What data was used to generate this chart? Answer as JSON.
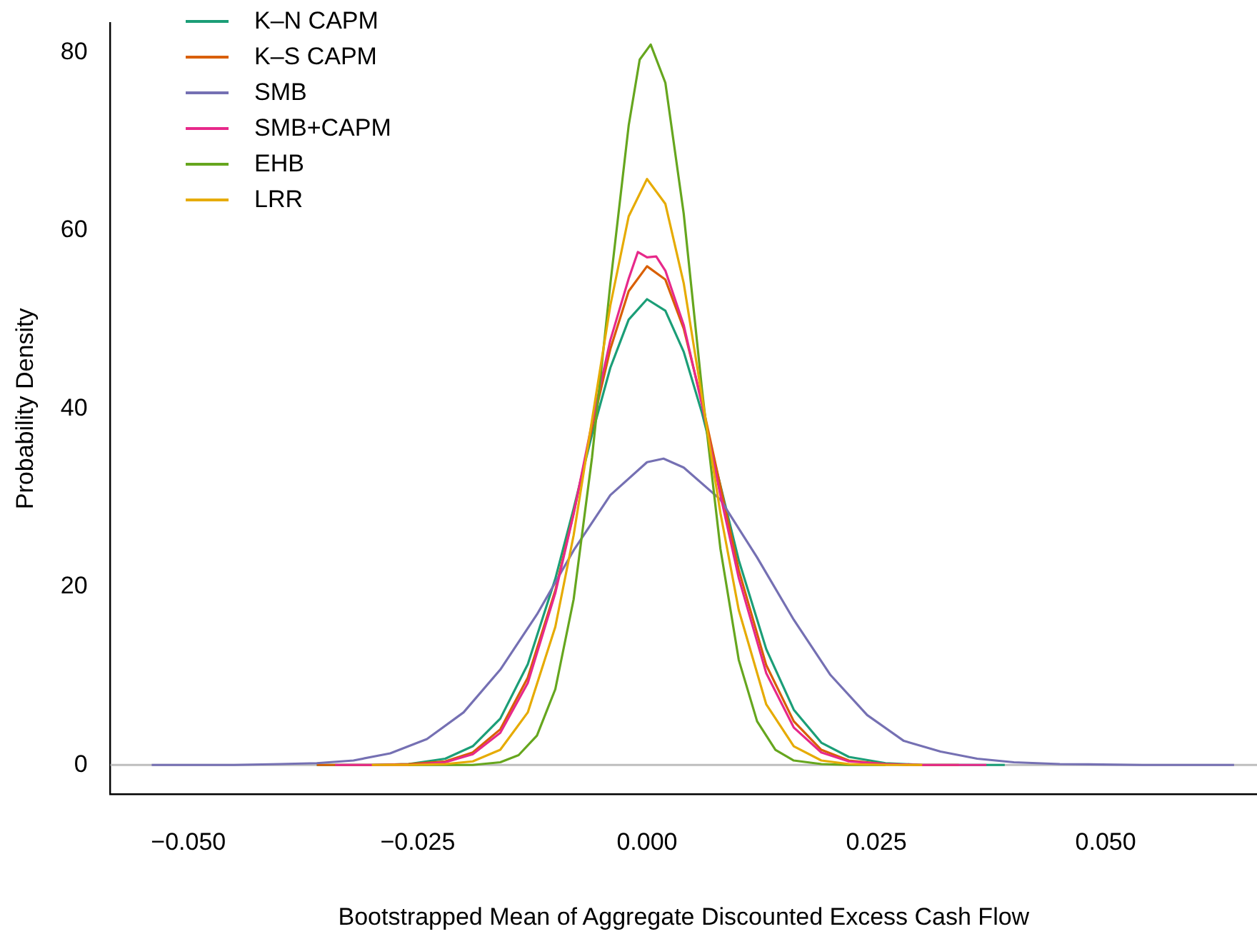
{
  "chart_data": {
    "type": "line",
    "xlabel": "Bootstrapped Mean of Aggregate Discounted Excess Cash Flow",
    "ylabel": "Probability Density",
    "xlim": [
      -0.0585,
      0.0665
    ],
    "ylim": [
      -3.3,
      83.3
    ],
    "xticks": [
      {
        "value": -0.05,
        "label": "−0.050"
      },
      {
        "value": -0.025,
        "label": "−0.025"
      },
      {
        "value": 0,
        "label": "0.000"
      },
      {
        "value": 0.025,
        "label": "0.025"
      },
      {
        "value": 0.05,
        "label": "0.050"
      }
    ],
    "yticks": [
      0,
      20,
      40,
      60,
      80
    ],
    "grid": false,
    "legend": "top left",
    "marker": "none",
    "line_style": "solid",
    "ref_lines": [
      {
        "axis": "y",
        "value": 0,
        "color": "#bebebe"
      }
    ],
    "series": [
      {
        "name": "K–N CAPM",
        "color": "#1b9e77",
        "x": [
          -0.036,
          -0.03,
          -0.026,
          -0.022,
          -0.019,
          -0.016,
          -0.013,
          -0.01,
          -0.008,
          -0.006,
          -0.004,
          -0.002,
          0,
          0.002,
          0.004,
          0.006,
          0.008,
          0.01,
          0.013,
          0.016,
          0.019,
          0.022,
          0.026,
          0.03,
          0.036,
          0.039
        ],
        "values": [
          0,
          0,
          0.1,
          0.7,
          2.1,
          5.2,
          11.3,
          20.9,
          28.8,
          37.1,
          44.6,
          50,
          52.3,
          51,
          46.4,
          39.5,
          31.4,
          23,
          13,
          6.2,
          2.5,
          0.9,
          0.2,
          0,
          0,
          0
        ]
      },
      {
        "name": "K–S CAPM",
        "color": "#d95f02",
        "x": [
          -0.036,
          -0.03,
          -0.026,
          -0.022,
          -0.019,
          -0.016,
          -0.013,
          -0.01,
          -0.008,
          -0.006,
          -0.004,
          -0.002,
          0,
          0.002,
          0.004,
          0.006,
          0.008,
          0.01,
          0.013,
          0.016,
          0.019,
          0.022,
          0.026,
          0.03,
          0.034
        ],
        "values": [
          0,
          0,
          0.1,
          0.4,
          1.4,
          4,
          9.8,
          19.6,
          28.3,
          37.9,
          46.7,
          53.2,
          56,
          54.5,
          49,
          40.7,
          31.3,
          21.9,
          11.2,
          4.9,
          1.7,
          0.5,
          0.1,
          0,
          0
        ]
      },
      {
        "name": "SMB",
        "color": "#7570b3",
        "x": [
          -0.054,
          -0.045,
          -0.04,
          -0.036,
          -0.032,
          -0.028,
          -0.024,
          -0.02,
          -0.016,
          -0.012,
          -0.008,
          -0.004,
          0,
          0.0018,
          0.004,
          0.008,
          0.012,
          0.016,
          0.02,
          0.024,
          0.028,
          0.032,
          0.036,
          0.04,
          0.045,
          0.054,
          0.064
        ],
        "values": [
          0,
          0,
          0.1,
          0.2,
          0.5,
          1.3,
          2.9,
          5.9,
          10.7,
          16.9,
          24.1,
          30.3,
          34,
          34.4,
          33.4,
          29.8,
          23.3,
          16.3,
          10.1,
          5.6,
          2.7,
          1.5,
          0.7,
          0.3,
          0.1,
          0,
          0
        ]
      },
      {
        "name": "SMB+CAPM",
        "color": "#e7298a",
        "x": [
          -0.034,
          -0.03,
          -0.026,
          -0.022,
          -0.019,
          -0.016,
          -0.013,
          -0.01,
          -0.008,
          -0.006,
          -0.004,
          -0.002,
          -0.001,
          0,
          0.001,
          0.002,
          0.004,
          0.006,
          0.008,
          0.01,
          0.013,
          0.016,
          0.019,
          0.022,
          0.026,
          0.03,
          0.037
        ],
        "values": [
          0,
          0,
          0,
          0.3,
          1.2,
          3.6,
          9.2,
          19.3,
          28.2,
          38.4,
          47.7,
          54.6,
          57.6,
          57,
          57.1,
          55.5,
          49.4,
          40.4,
          30.3,
          21,
          10.3,
          4.2,
          1.4,
          0.4,
          0.1,
          0,
          0
        ]
      },
      {
        "name": "EHB",
        "color": "#66a61e",
        "x": [
          -0.026,
          -0.022,
          -0.019,
          -0.016,
          -0.014,
          -0.012,
          -0.01,
          -0.008,
          -0.006,
          -0.004,
          -0.002,
          -0.0008,
          0.0004,
          0.002,
          0.004,
          0.006,
          0.008,
          0.01,
          0.012,
          0.014,
          0.016,
          0.019,
          0.022,
          0.026
        ],
        "values": [
          0,
          0,
          0,
          0.3,
          1.1,
          3.3,
          8.5,
          18.6,
          34.5,
          54,
          71.8,
          79.2,
          80.9,
          76.6,
          61.9,
          42.1,
          24.3,
          11.8,
          4.9,
          1.7,
          0.5,
          0.1,
          0,
          0
        ]
      },
      {
        "name": "LRR",
        "color": "#e6ab02",
        "x": [
          -0.03,
          -0.026,
          -0.022,
          -0.019,
          -0.016,
          -0.013,
          -0.01,
          -0.008,
          -0.006,
          -0.004,
          -0.002,
          0,
          0.002,
          0.004,
          0.006,
          0.008,
          0.01,
          0.013,
          0.016,
          0.019,
          0.022,
          0.026,
          0.03
        ],
        "values": [
          0,
          0,
          0.1,
          0.4,
          1.7,
          5.9,
          15.5,
          25.8,
          38.7,
          51.6,
          61.6,
          65.8,
          63,
          54.1,
          41.3,
          28.3,
          17.4,
          6.8,
          2.1,
          0.5,
          0.1,
          0,
          0
        ]
      }
    ]
  }
}
